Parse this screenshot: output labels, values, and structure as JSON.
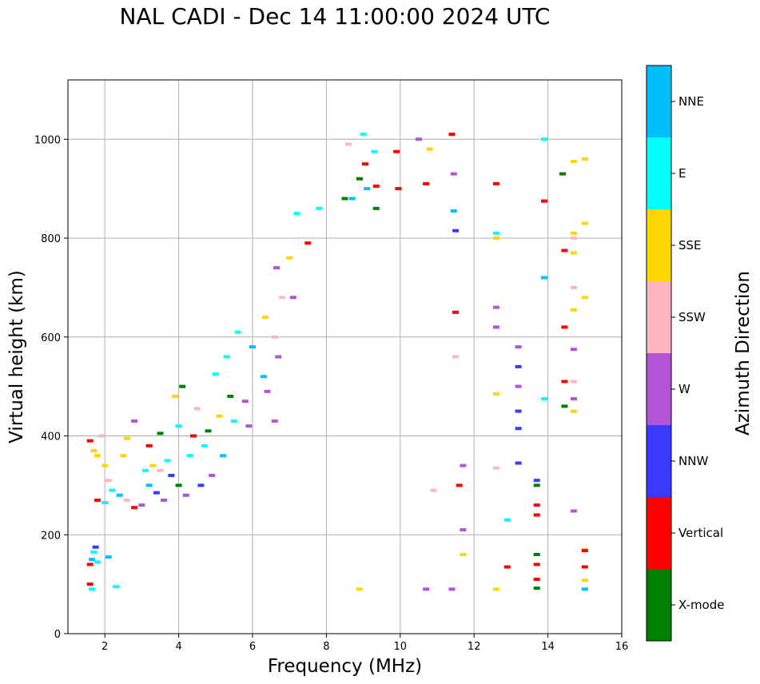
{
  "chart_data": {
    "type": "scatter",
    "title": "NAL CADI - Dec 14 11:00:00 2024 UTC",
    "xlabel": "Frequency (MHz)",
    "ylabel": "Virtual height (km)",
    "xlim": [
      1,
      16
    ],
    "ylim": [
      0,
      1120
    ],
    "xticks": [
      2,
      4,
      6,
      8,
      10,
      12,
      14,
      16
    ],
    "yticks": [
      0,
      200,
      400,
      600,
      800,
      1000
    ],
    "grid": true,
    "colorbar": {
      "label": "Azimuth Direction",
      "categories": [
        "X-mode",
        "Vertical",
        "NNW",
        "W",
        "SSW",
        "SSE",
        "E",
        "NNE"
      ],
      "colors": {
        "X-mode": "#008000",
        "Vertical": "#ff0000",
        "NNW": "#3a3aff",
        "W": "#b254d6",
        "SSW": "#ffb6c1",
        "SSE": "#ffd700",
        "E": "#00ffff",
        "NNE": "#00bfff"
      }
    },
    "points": [
      {
        "f": 1.6,
        "h": 100,
        "d": "Vertical"
      },
      {
        "f": 1.6,
        "h": 140,
        "d": "Vertical"
      },
      {
        "f": 1.65,
        "h": 150,
        "d": "NNE"
      },
      {
        "f": 1.7,
        "h": 165,
        "d": "E"
      },
      {
        "f": 1.75,
        "h": 175,
        "d": "NNW"
      },
      {
        "f": 1.8,
        "h": 145,
        "d": "E"
      },
      {
        "f": 1.65,
        "h": 90,
        "d": "E"
      },
      {
        "f": 2.1,
        "h": 155,
        "d": "NNE"
      },
      {
        "f": 2.3,
        "h": 95,
        "d": "E"
      },
      {
        "f": 1.6,
        "h": 390,
        "d": "Vertical"
      },
      {
        "f": 1.7,
        "h": 370,
        "d": "SSE"
      },
      {
        "f": 1.8,
        "h": 360,
        "d": "SSE"
      },
      {
        "f": 1.9,
        "h": 400,
        "d": "SSW"
      },
      {
        "f": 2.0,
        "h": 340,
        "d": "SSE"
      },
      {
        "f": 2.1,
        "h": 310,
        "d": "SSW"
      },
      {
        "f": 1.8,
        "h": 270,
        "d": "Vertical"
      },
      {
        "f": 2.0,
        "h": 265,
        "d": "E"
      },
      {
        "f": 2.2,
        "h": 290,
        "d": "E"
      },
      {
        "f": 2.4,
        "h": 280,
        "d": "NNE"
      },
      {
        "f": 2.5,
        "h": 360,
        "d": "SSE"
      },
      {
        "f": 2.6,
        "h": 395,
        "d": "SSE"
      },
      {
        "f": 2.6,
        "h": 270,
        "d": "SSW"
      },
      {
        "f": 2.8,
        "h": 255,
        "d": "Vertical"
      },
      {
        "f": 2.8,
        "h": 430,
        "d": "W"
      },
      {
        "f": 3.0,
        "h": 260,
        "d": "W"
      },
      {
        "f": 3.1,
        "h": 330,
        "d": "E"
      },
      {
        "f": 3.2,
        "h": 300,
        "d": "NNE"
      },
      {
        "f": 3.2,
        "h": 380,
        "d": "Vertical"
      },
      {
        "f": 3.3,
        "h": 340,
        "d": "SSE"
      },
      {
        "f": 3.4,
        "h": 285,
        "d": "NNW"
      },
      {
        "f": 3.5,
        "h": 405,
        "d": "X-mode"
      },
      {
        "f": 3.5,
        "h": 330,
        "d": "SSW"
      },
      {
        "f": 3.6,
        "h": 270,
        "d": "W"
      },
      {
        "f": 3.7,
        "h": 350,
        "d": "E"
      },
      {
        "f": 3.8,
        "h": 320,
        "d": "NNW"
      },
      {
        "f": 3.9,
        "h": 480,
        "d": "SSE"
      },
      {
        "f": 4.0,
        "h": 300,
        "d": "X-mode"
      },
      {
        "f": 4.0,
        "h": 420,
        "d": "E"
      },
      {
        "f": 4.1,
        "h": 500,
        "d": "X-mode"
      },
      {
        "f": 4.2,
        "h": 280,
        "d": "W"
      },
      {
        "f": 4.3,
        "h": 360,
        "d": "E"
      },
      {
        "f": 4.4,
        "h": 400,
        "d": "Vertical"
      },
      {
        "f": 4.5,
        "h": 455,
        "d": "SSW"
      },
      {
        "f": 4.6,
        "h": 300,
        "d": "NNW"
      },
      {
        "f": 4.7,
        "h": 380,
        "d": "E"
      },
      {
        "f": 4.8,
        "h": 410,
        "d": "X-mode"
      },
      {
        "f": 4.9,
        "h": 320,
        "d": "W"
      },
      {
        "f": 5.0,
        "h": 525,
        "d": "E"
      },
      {
        "f": 5.1,
        "h": 440,
        "d": "SSE"
      },
      {
        "f": 5.2,
        "h": 360,
        "d": "NNE"
      },
      {
        "f": 5.3,
        "h": 560,
        "d": "E"
      },
      {
        "f": 5.4,
        "h": 480,
        "d": "X-mode"
      },
      {
        "f": 5.5,
        "h": 430,
        "d": "E"
      },
      {
        "f": 5.6,
        "h": 610,
        "d": "E"
      },
      {
        "f": 5.8,
        "h": 470,
        "d": "W"
      },
      {
        "f": 5.9,
        "h": 420,
        "d": "W"
      },
      {
        "f": 6.0,
        "h": 580,
        "d": "NNE"
      },
      {
        "f": 6.3,
        "h": 520,
        "d": "NNE"
      },
      {
        "f": 6.35,
        "h": 640,
        "d": "SSE"
      },
      {
        "f": 6.4,
        "h": 490,
        "d": "W"
      },
      {
        "f": 6.6,
        "h": 430,
        "d": "W"
      },
      {
        "f": 6.6,
        "h": 600,
        "d": "SSW"
      },
      {
        "f": 6.65,
        "h": 740,
        "d": "W"
      },
      {
        "f": 6.7,
        "h": 560,
        "d": "W"
      },
      {
        "f": 6.8,
        "h": 680,
        "d": "SSW"
      },
      {
        "f": 7.0,
        "h": 760,
        "d": "SSE"
      },
      {
        "f": 7.1,
        "h": 680,
        "d": "W"
      },
      {
        "f": 7.2,
        "h": 850,
        "d": "E"
      },
      {
        "f": 7.5,
        "h": 790,
        "d": "Vertical"
      },
      {
        "f": 7.8,
        "h": 860,
        "d": "E"
      },
      {
        "f": 8.5,
        "h": 880,
        "d": "X-mode"
      },
      {
        "f": 8.6,
        "h": 990,
        "d": "SSW"
      },
      {
        "f": 8.7,
        "h": 880,
        "d": "NNE"
      },
      {
        "f": 8.9,
        "h": 920,
        "d": "X-mode"
      },
      {
        "f": 8.9,
        "h": 90,
        "d": "SSE"
      },
      {
        "f": 9.0,
        "h": 1010,
        "d": "E"
      },
      {
        "f": 9.05,
        "h": 950,
        "d": "Vertical"
      },
      {
        "f": 9.1,
        "h": 900,
        "d": "NNE"
      },
      {
        "f": 9.3,
        "h": 975,
        "d": "E"
      },
      {
        "f": 9.35,
        "h": 905,
        "d": "Vertical"
      },
      {
        "f": 9.35,
        "h": 860,
        "d": "X-mode"
      },
      {
        "f": 9.9,
        "h": 975,
        "d": "Vertical"
      },
      {
        "f": 9.95,
        "h": 900,
        "d": "Vertical"
      },
      {
        "f": 10.5,
        "h": 1000,
        "d": "W"
      },
      {
        "f": 10.7,
        "h": 910,
        "d": "Vertical"
      },
      {
        "f": 10.8,
        "h": 980,
        "d": "SSE"
      },
      {
        "f": 10.7,
        "h": 90,
        "d": "W"
      },
      {
        "f": 10.9,
        "h": 290,
        "d": "SSW"
      },
      {
        "f": 11.4,
        "h": 1010,
        "d": "Vertical"
      },
      {
        "f": 11.45,
        "h": 930,
        "d": "W"
      },
      {
        "f": 11.45,
        "h": 855,
        "d": "NNE"
      },
      {
        "f": 11.5,
        "h": 815,
        "d": "NNW"
      },
      {
        "f": 11.5,
        "h": 650,
        "d": "Vertical"
      },
      {
        "f": 11.5,
        "h": 560,
        "d": "SSW"
      },
      {
        "f": 11.6,
        "h": 300,
        "d": "Vertical"
      },
      {
        "f": 11.7,
        "h": 340,
        "d": "W"
      },
      {
        "f": 11.7,
        "h": 210,
        "d": "W"
      },
      {
        "f": 11.7,
        "h": 160,
        "d": "SSE"
      },
      {
        "f": 11.4,
        "h": 90,
        "d": "W"
      },
      {
        "f": 12.6,
        "h": 910,
        "d": "Vertical"
      },
      {
        "f": 12.6,
        "h": 810,
        "d": "E"
      },
      {
        "f": 12.6,
        "h": 800,
        "d": "SSE"
      },
      {
        "f": 12.6,
        "h": 660,
        "d": "W"
      },
      {
        "f": 12.6,
        "h": 620,
        "d": "W"
      },
      {
        "f": 12.6,
        "h": 485,
        "d": "SSE"
      },
      {
        "f": 12.6,
        "h": 335,
        "d": "SSW"
      },
      {
        "f": 12.6,
        "h": 90,
        "d": "SSE"
      },
      {
        "f": 12.9,
        "h": 230,
        "d": "E"
      },
      {
        "f": 12.9,
        "h": 135,
        "d": "Vertical"
      },
      {
        "f": 13.2,
        "h": 580,
        "d": "W"
      },
      {
        "f": 13.2,
        "h": 540,
        "d": "NNW"
      },
      {
        "f": 13.2,
        "h": 500,
        "d": "W"
      },
      {
        "f": 13.2,
        "h": 450,
        "d": "NNW"
      },
      {
        "f": 13.2,
        "h": 415,
        "d": "NNW"
      },
      {
        "f": 13.2,
        "h": 345,
        "d": "NNW"
      },
      {
        "f": 13.7,
        "h": 310,
        "d": "NNW"
      },
      {
        "f": 13.7,
        "h": 300,
        "d": "X-mode"
      },
      {
        "f": 13.7,
        "h": 260,
        "d": "Vertical"
      },
      {
        "f": 13.7,
        "h": 240,
        "d": "Vertical"
      },
      {
        "f": 13.7,
        "h": 160,
        "d": "X-mode"
      },
      {
        "f": 13.7,
        "h": 140,
        "d": "Vertical"
      },
      {
        "f": 13.7,
        "h": 110,
        "d": "Vertical"
      },
      {
        "f": 13.7,
        "h": 92,
        "d": "X-mode"
      },
      {
        "f": 13.9,
        "h": 1000,
        "d": "E"
      },
      {
        "f": 13.9,
        "h": 875,
        "d": "Vertical"
      },
      {
        "f": 13.9,
        "h": 720,
        "d": "NNE"
      },
      {
        "f": 13.9,
        "h": 475,
        "d": "E"
      },
      {
        "f": 14.4,
        "h": 930,
        "d": "X-mode"
      },
      {
        "f": 14.45,
        "h": 775,
        "d": "Vertical"
      },
      {
        "f": 14.45,
        "h": 620,
        "d": "Vertical"
      },
      {
        "f": 14.45,
        "h": 510,
        "d": "Vertical"
      },
      {
        "f": 14.45,
        "h": 460,
        "d": "X-mode"
      },
      {
        "f": 14.7,
        "h": 955,
        "d": "SSE"
      },
      {
        "f": 14.7,
        "h": 810,
        "d": "SSE"
      },
      {
        "f": 14.7,
        "h": 800,
        "d": "SSW"
      },
      {
        "f": 14.7,
        "h": 770,
        "d": "SSE"
      },
      {
        "f": 14.7,
        "h": 700,
        "d": "SSW"
      },
      {
        "f": 14.7,
        "h": 655,
        "d": "SSE"
      },
      {
        "f": 14.7,
        "h": 575,
        "d": "W"
      },
      {
        "f": 14.7,
        "h": 510,
        "d": "SSW"
      },
      {
        "f": 14.7,
        "h": 475,
        "d": "W"
      },
      {
        "f": 14.7,
        "h": 450,
        "d": "SSE"
      },
      {
        "f": 14.7,
        "h": 248,
        "d": "W"
      },
      {
        "f": 15.0,
        "h": 960,
        "d": "SSE"
      },
      {
        "f": 15.0,
        "h": 830,
        "d": "SSE"
      },
      {
        "f": 15.0,
        "h": 680,
        "d": "SSE"
      },
      {
        "f": 15.0,
        "h": 170,
        "d": "SSE"
      },
      {
        "f": 15.0,
        "h": 168,
        "d": "Vertical"
      },
      {
        "f": 15.0,
        "h": 135,
        "d": "Vertical"
      },
      {
        "f": 15.0,
        "h": 108,
        "d": "SSE"
      },
      {
        "f": 15.0,
        "h": 90,
        "d": "NNE"
      }
    ]
  }
}
